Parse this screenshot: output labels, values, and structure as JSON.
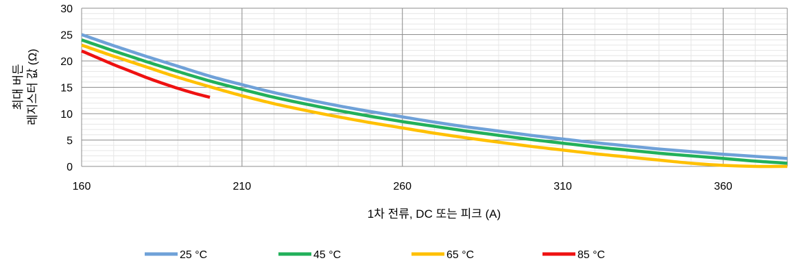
{
  "chart_data": {
    "type": "line",
    "title": "",
    "xlabel": "1차 전류, DC 또는 피크 (A)",
    "ylabel_lines": [
      "최대 버든",
      "레지스터 값 (Ω)"
    ],
    "xlim": [
      160,
      380
    ],
    "ylim": [
      0,
      30
    ],
    "x_ticks": [
      160,
      210,
      260,
      310,
      360
    ],
    "y_ticks": [
      0,
      5,
      10,
      15,
      20,
      25,
      30
    ],
    "grid": true,
    "legend_position": "bottom",
    "series": [
      {
        "name": "25 °C",
        "color": "#6FA1D8",
        "x": [
          160,
          170,
          180,
          190,
          200,
          210,
          220,
          230,
          240,
          250,
          260,
          270,
          280,
          290,
          300,
          310,
          320,
          330,
          340,
          350,
          360,
          370,
          380
        ],
        "y": [
          25,
          22.9,
          20.9,
          19,
          17.1,
          15.5,
          14,
          12.7,
          11.5,
          10.4,
          9.4,
          8.4,
          7.5,
          6.7,
          5.9,
          5.2,
          4.5,
          3.9,
          3.3,
          2.8,
          2.3,
          1.9,
          1.5
        ]
      },
      {
        "name": "45 °C",
        "color": "#22B05A",
        "x": [
          160,
          170,
          180,
          190,
          200,
          210,
          220,
          230,
          240,
          250,
          260,
          270,
          280,
          290,
          300,
          310,
          320,
          330,
          340,
          350,
          360,
          370,
          380
        ],
        "y": [
          24,
          21.9,
          19.9,
          18,
          16.2,
          14.6,
          13.1,
          11.8,
          10.6,
          9.5,
          8.5,
          7.6,
          6.7,
          5.9,
          5.1,
          4.4,
          3.7,
          3.1,
          2.5,
          2,
          1.5,
          1,
          0.6
        ]
      },
      {
        "name": "65 °C",
        "color": "#FFC000",
        "x": [
          160,
          170,
          180,
          190,
          200,
          210,
          220,
          230,
          240,
          250,
          260,
          270,
          280,
          290,
          300,
          310,
          320,
          330,
          340,
          350,
          360,
          370,
          380
        ],
        "y": [
          23,
          20.9,
          18.9,
          16.9,
          15.1,
          13.4,
          11.9,
          10.6,
          9.4,
          8.3,
          7.3,
          6.3,
          5.4,
          4.6,
          3.8,
          3.1,
          2.4,
          1.8,
          1.2,
          0.6,
          0.2,
          0,
          0
        ]
      },
      {
        "name": "85 °C",
        "color": "#EE1111",
        "x": [
          160,
          165,
          170,
          175,
          180,
          185,
          190,
          195,
          200
        ],
        "y": [
          21.9,
          20.6,
          19.3,
          18.1,
          16.9,
          15.8,
          14.8,
          13.9,
          13.1
        ]
      }
    ]
  }
}
